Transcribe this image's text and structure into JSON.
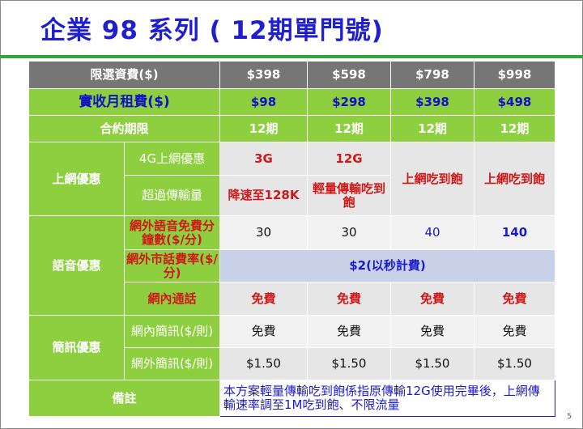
{
  "title": "企業 98 系列 ( 12期單門號)",
  "page_number": "5",
  "table": {
    "header": {
      "label": "限選資費($)",
      "plans": [
        "$398",
        "$598",
        "$798",
        "$998"
      ]
    },
    "rent": {
      "label": "實收月租費($)",
      "values": [
        "$98",
        "$298",
        "$398",
        "$498"
      ]
    },
    "contract": {
      "label": "合約期限",
      "values": [
        "12期",
        "12期",
        "12期",
        "12期"
      ]
    },
    "data": {
      "category": "上網優惠",
      "quota_label": "4G上網優惠",
      "quota_values": [
        "3G",
        "12G"
      ],
      "overage_label": "超過傳輸量",
      "overage_values": [
        "降速至128K",
        "輕量傳輸吃到飽"
      ],
      "unlimited_values": [
        "上網吃到飽",
        "上網吃到飽"
      ]
    },
    "voice": {
      "category": "語音優惠",
      "free_minutes_label": "網外語音免費分鐘數($/分)",
      "free_minutes_values": [
        "30",
        "30",
        "40",
        "140"
      ],
      "landline_label": "網外市話費率($/分)",
      "landline_value": "$2(以秒計費)",
      "onnet_label": "網內通話",
      "onnet_values": [
        "免費",
        "免費",
        "免費",
        "免費"
      ]
    },
    "sms": {
      "category": "簡訊優惠",
      "onnet_label": "網內簡訊($/則)",
      "onnet_values": [
        "免費",
        "免費",
        "免費",
        "免費"
      ],
      "offnet_label": "網外簡訊($/則)",
      "offnet_values": [
        "$1.50",
        "$1.50",
        "$1.50",
        "$1.50"
      ]
    },
    "note": {
      "label": "備註",
      "text": "本方案輕量傳輸吃到飽係指原傳輸12G使用完畢後，上網傳輸速率調至1M吃到飽、不限流量"
    }
  }
}
